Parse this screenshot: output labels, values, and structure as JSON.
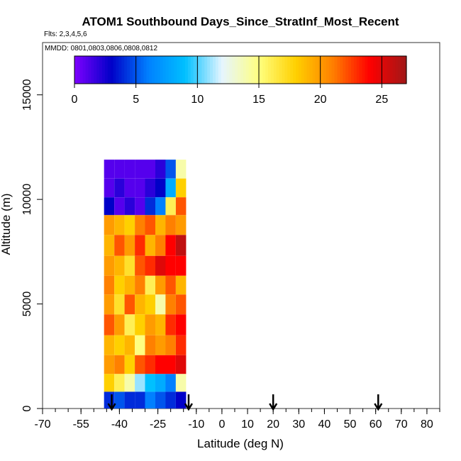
{
  "chart_data": {
    "type": "heatmap",
    "title": "ATOM1 Southbound Days_Since_StratInf_Most_Recent",
    "flights_label": "Flts: 2,3,4,5,6",
    "mmdd_label": "MMDD: 0801,0803,0806,0808,0812",
    "xlabel": "Latitude (deg N)",
    "ylabel": "Altitude (m)",
    "xlim": [
      -70,
      85
    ],
    "ylim": [
      0,
      17500
    ],
    "x_ticks": [
      -70,
      -55,
      -40,
      -25,
      -10,
      0,
      10,
      20,
      30,
      40,
      50,
      60,
      70,
      80
    ],
    "y_ticks": [
      0,
      5000,
      10000,
      15000
    ],
    "colorbar": {
      "range": [
        0,
        27
      ],
      "ticks": [
        0,
        5,
        10,
        15,
        20,
        25
      ],
      "colors": [
        "#7f00ff",
        "#0000c8",
        "#0080ff",
        "#00c0ff",
        "#e6f5ff",
        "#ffff80",
        "#ffd000",
        "#ff8000",
        "#ff0000",
        "#a01818"
      ]
    },
    "profile_arrows_lat": [
      -43,
      -13,
      20,
      61
    ],
    "altitude_levels": [
      11500,
      10500,
      9700,
      8800,
      7800,
      6800,
      5900,
      5000,
      4000,
      3000,
      2100,
      1200,
      400
    ],
    "lat_columns": [
      -44,
      -40,
      -36,
      -32,
      -28,
      -24,
      -20,
      -16
    ],
    "values": [
      [
        1,
        1,
        1,
        1,
        1,
        2,
        5,
        14
      ],
      [
        1,
        2,
        1,
        1,
        2,
        3,
        8,
        18
      ],
      [
        3,
        1,
        2,
        1,
        4,
        6,
        16,
        22
      ],
      [
        20,
        19,
        18,
        21,
        22,
        19,
        21,
        20
      ],
      [
        19,
        22,
        20,
        23,
        19,
        21,
        24,
        26
      ],
      [
        20,
        19,
        17,
        22,
        23,
        25,
        24,
        24
      ],
      [
        21,
        18,
        19,
        21,
        16,
        20,
        22,
        19
      ],
      [
        20,
        17,
        22,
        19,
        18,
        14,
        21,
        22
      ],
      [
        22,
        20,
        16,
        18,
        20,
        19,
        23,
        24
      ],
      [
        19,
        18,
        19,
        15,
        21,
        20,
        21,
        23
      ],
      [
        20,
        21,
        18,
        22,
        23,
        24,
        24,
        25
      ],
      [
        18,
        16,
        14,
        11,
        9,
        8,
        6,
        14
      ],
      [
        4,
        5,
        4,
        4,
        6,
        5,
        4,
        3
      ]
    ]
  }
}
